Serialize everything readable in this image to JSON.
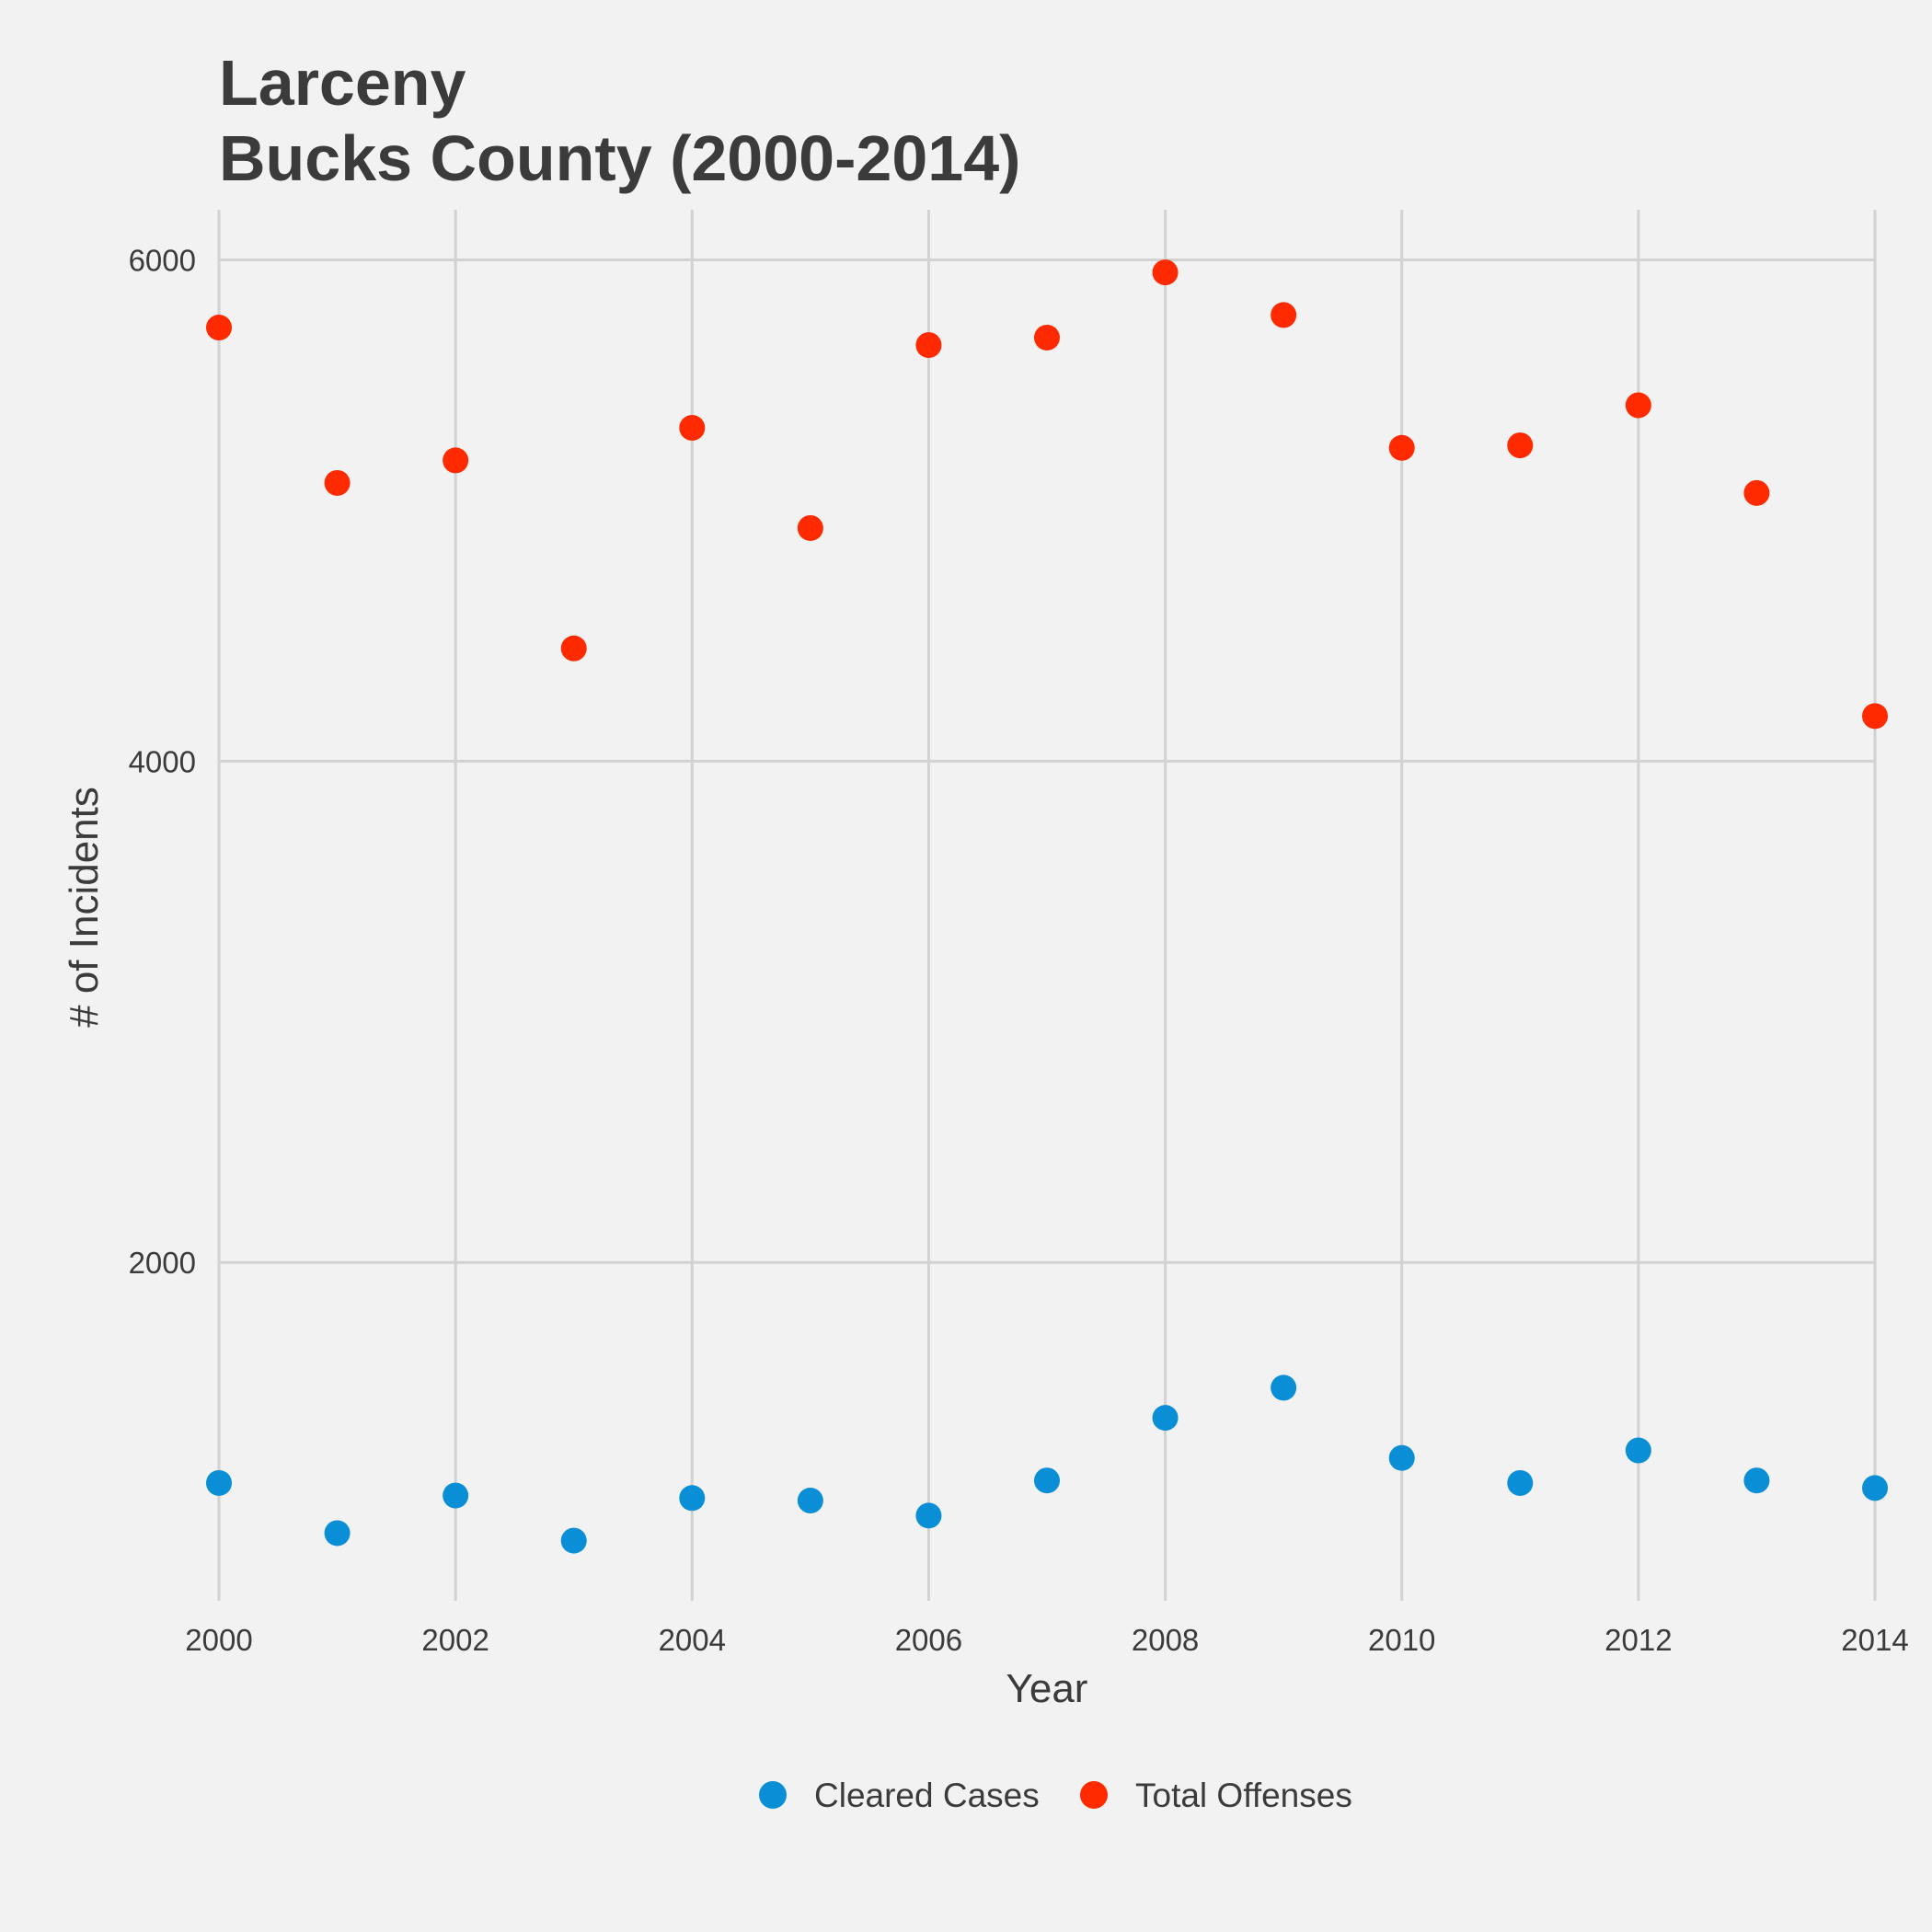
{
  "chart_data": {
    "type": "scatter",
    "title_line1": "Larceny",
    "title_line2": "Bucks County (2000-2014)",
    "xlabel": "Year",
    "ylabel": "# of Incidents",
    "x": [
      2000,
      2001,
      2002,
      2003,
      2004,
      2005,
      2006,
      2007,
      2008,
      2009,
      2010,
      2011,
      2012,
      2013,
      2014
    ],
    "xlim": [
      2000,
      2014
    ],
    "ylim": [
      650,
      6200
    ],
    "x_ticks": [
      "2000",
      "2002",
      "2004",
      "2006",
      "2008",
      "2010",
      "2012",
      "2014"
    ],
    "y_ticks": [
      "2000",
      "4000",
      "6000"
    ],
    "grid": true,
    "legend_position": "bottom",
    "series": [
      {
        "name": "Cleared Cases",
        "color": "#0a8fd6",
        "values": [
          1120,
          920,
          1070,
          890,
          1060,
          1050,
          990,
          1130,
          1380,
          1500,
          1220,
          1120,
          1250,
          1130,
          1100
        ]
      },
      {
        "name": "Total Offenses",
        "color": "#ff2a00",
        "values": [
          5730,
          5110,
          5200,
          4450,
          5330,
          4930,
          5660,
          5690,
          5950,
          5780,
          5250,
          5260,
          5420,
          5070,
          4180
        ]
      }
    ]
  }
}
